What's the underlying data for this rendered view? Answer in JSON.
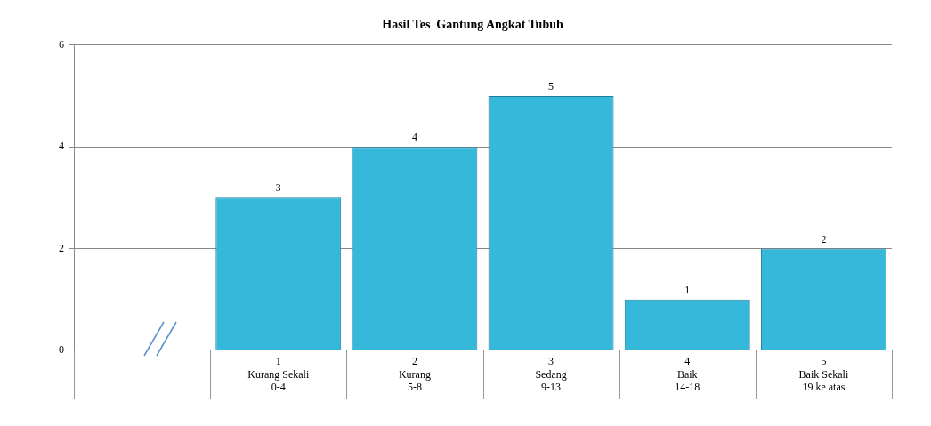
{
  "chart_data": {
    "type": "bar",
    "title": "Hasil Tes  Gantung Angkat Tubuh",
    "categories": [
      null,
      "1\nKurang Sekali\n0-4",
      "2\nKurang\n5-8",
      "3\nSedang\n9-13",
      "4\nBaik\n14-18",
      "5\nBaik Sekali\n19 ke atas"
    ],
    "values": [
      null,
      3,
      4,
      5,
      1,
      2
    ],
    "color": "#35b8d9",
    "ylim": [
      0,
      6
    ],
    "yticks": [
      0,
      2,
      4,
      6
    ],
    "grid": "y",
    "data_labels": true
  }
}
